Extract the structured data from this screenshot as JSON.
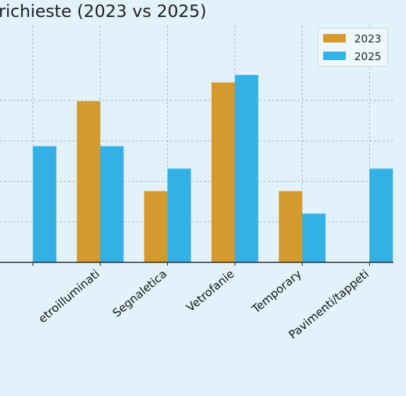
{
  "chart_data": {
    "type": "bar",
    "title": "richieste (2023 vs 2025)",
    "categories": [
      "",
      "etroilluminati",
      "Segnaletica",
      "Vetrofanie",
      "Temporary",
      "Pavimenti/tappeti"
    ],
    "series": [
      {
        "name": "2023",
        "color": "#d49a2e",
        "values": [
          null,
          21.5,
          9.5,
          24,
          9.5,
          0
        ]
      },
      {
        "name": "2025",
        "color": "#33b0e5",
        "values": [
          15.5,
          15.5,
          12.5,
          25,
          6.5,
          12.5
        ]
      }
    ],
    "xlabel": "",
    "ylabel": "",
    "ylim": [
      0,
      27
    ],
    "grid": true,
    "legend": "top-right"
  }
}
